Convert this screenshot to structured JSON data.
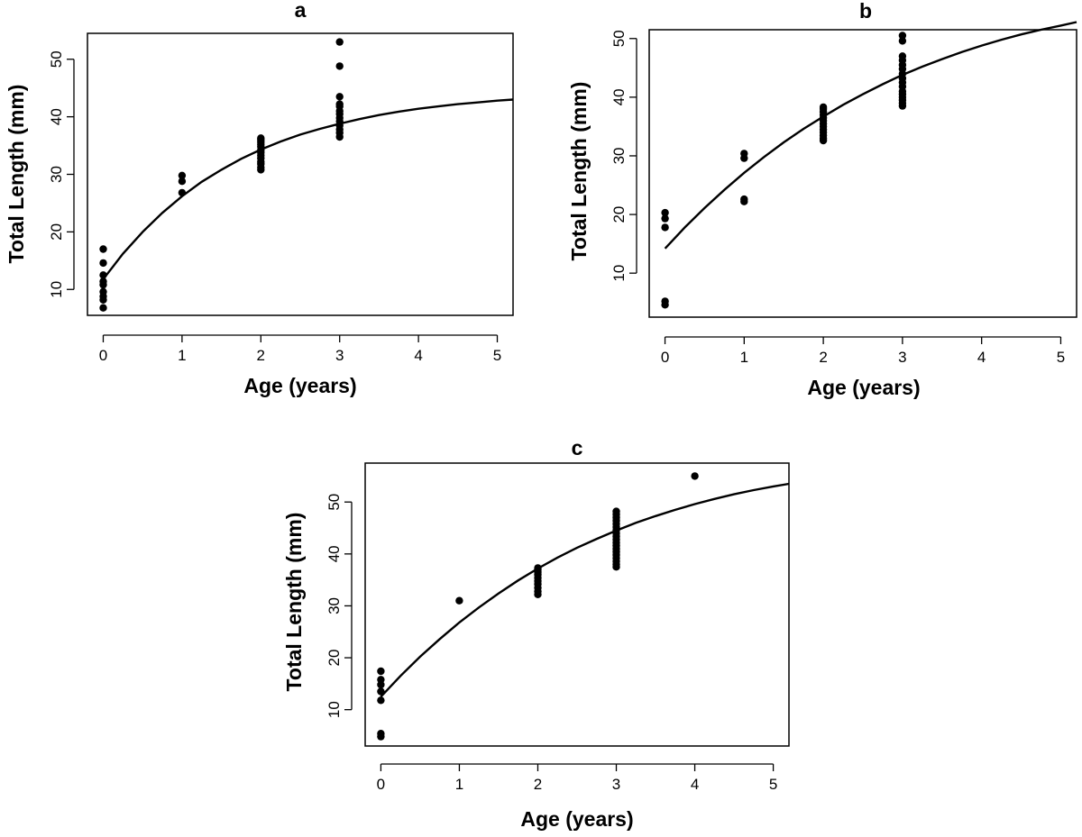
{
  "chart_data": [
    {
      "type": "scatter",
      "title": "a",
      "xlabel": "Age (years)",
      "ylabel": "Total Length (mm)",
      "xlim": [
        -0.2,
        5.2
      ],
      "ylim": [
        5.5,
        54.5
      ],
      "xticks": [
        0,
        1,
        2,
        3,
        4,
        5
      ],
      "yticks": [
        10,
        20,
        30,
        40,
        50
      ],
      "grid": false,
      "points": {
        "x": [
          0,
          0,
          0,
          0,
          0,
          0,
          0,
          0,
          0,
          1,
          1,
          1,
          2,
          2,
          2,
          2,
          2,
          2,
          2,
          2,
          2,
          2,
          2,
          2,
          2,
          3,
          3,
          3,
          3,
          3,
          3,
          3,
          3,
          3,
          3,
          3,
          3,
          3
        ],
        "y": [
          6.8,
          8.2,
          8.8,
          9.6,
          10.8,
          11.4,
          12.5,
          14.6,
          17.0,
          26.8,
          28.8,
          29.8,
          30.8,
          31.2,
          31.8,
          32.2,
          32.8,
          33.3,
          33.8,
          34.2,
          34.8,
          35.2,
          35.6,
          36.0,
          36.3,
          36.5,
          37.2,
          37.8,
          38.5,
          39.2,
          39.8,
          40.5,
          41.0,
          41.8,
          42.2,
          43.5,
          48.8,
          53.0
        ]
      },
      "fit": {
        "x": [
          0,
          0.25,
          0.5,
          0.75,
          1,
          1.25,
          1.5,
          1.75,
          2,
          2.25,
          2.5,
          2.75,
          3,
          3.25,
          3.5,
          3.75,
          4,
          4.25,
          4.5,
          4.75,
          5,
          5.2
        ],
        "y": [
          11.8,
          16.2,
          20.0,
          23.3,
          26.2,
          28.7,
          30.8,
          32.7,
          34.3,
          35.7,
          36.9,
          37.9,
          38.8,
          39.6,
          40.3,
          40.9,
          41.4,
          41.8,
          42.2,
          42.5,
          42.8,
          43.0
        ]
      }
    },
    {
      "type": "scatter",
      "title": "b",
      "xlabel": "Age (years)",
      "ylabel": "Total Length (mm)",
      "xlim": [
        -0.2,
        5.2
      ],
      "ylim": [
        2.5,
        51.5
      ],
      "xticks": [
        0,
        1,
        2,
        3,
        4,
        5
      ],
      "yticks": [
        10,
        20,
        30,
        40,
        50
      ],
      "grid": false,
      "points": {
        "x": [
          0,
          0,
          0,
          0,
          0,
          1,
          1,
          1,
          1,
          2,
          2,
          2,
          2,
          2,
          2,
          2,
          2,
          2,
          2,
          2,
          2,
          2,
          3,
          3,
          3,
          3,
          3,
          3,
          3,
          3,
          3,
          3,
          3,
          3,
          3,
          3,
          3,
          3
        ],
        "y": [
          4.6,
          5.2,
          17.8,
          19.3,
          20.3,
          22.2,
          22.6,
          29.6,
          30.4,
          32.6,
          33.0,
          33.5,
          34.0,
          34.5,
          35.0,
          35.5,
          36.0,
          36.5,
          37.0,
          37.5,
          38.0,
          38.3,
          38.5,
          39.0,
          39.5,
          40.0,
          40.5,
          41.0,
          41.8,
          42.5,
          43.2,
          44.0,
          44.8,
          45.5,
          46.3,
          47.0,
          49.6,
          50.5
        ]
      },
      "fit": {
        "x": [
          0,
          0.25,
          0.5,
          0.75,
          1,
          1.25,
          1.5,
          1.75,
          2,
          2.25,
          2.5,
          2.75,
          3,
          3.25,
          3.5,
          3.75,
          4,
          4.25,
          4.5,
          4.75,
          5,
          5.2
        ],
        "y": [
          14.2,
          17.8,
          21.1,
          24.2,
          27.1,
          29.8,
          32.3,
          34.6,
          36.7,
          38.7,
          40.5,
          42.2,
          43.8,
          45.2,
          46.5,
          47.7,
          48.8,
          49.8,
          50.7,
          51.5,
          52.2,
          52.8
        ]
      }
    },
    {
      "type": "scatter",
      "title": "c",
      "xlabel": "Age (years)",
      "ylabel": "Total Length (mm)",
      "xlim": [
        -0.2,
        5.2
      ],
      "ylim": [
        3.0,
        57.5
      ],
      "xticks": [
        0,
        1,
        2,
        3,
        4,
        5
      ],
      "yticks": [
        10,
        20,
        30,
        40,
        50
      ],
      "grid": false,
      "points": {
        "x": [
          0,
          0,
          0,
          0,
          0,
          0,
          0,
          1,
          2,
          2,
          2,
          2,
          2,
          2,
          2,
          2,
          2,
          2,
          3,
          3,
          3,
          3,
          3,
          3,
          3,
          3,
          3,
          3,
          3,
          3,
          3,
          3,
          3,
          3,
          3,
          3,
          3,
          4
        ],
        "y": [
          4.8,
          5.4,
          11.8,
          13.5,
          14.8,
          15.8,
          17.4,
          31.0,
          32.2,
          32.8,
          33.5,
          34.2,
          34.8,
          35.4,
          36.0,
          36.5,
          37.0,
          37.3,
          37.5,
          38.0,
          38.6,
          39.2,
          39.8,
          40.4,
          41.0,
          41.6,
          42.2,
          42.8,
          43.4,
          44.0,
          44.6,
          45.2,
          45.8,
          46.4,
          47.0,
          47.6,
          48.2,
          55.0
        ]
      },
      "fit": {
        "x": [
          0,
          0.25,
          0.5,
          0.75,
          1,
          1.25,
          1.5,
          1.75,
          2,
          2.25,
          2.5,
          2.75,
          3,
          3.25,
          3.5,
          3.75,
          4,
          4.25,
          4.5,
          4.75,
          5,
          5.2
        ],
        "y": [
          12.5,
          16.5,
          20.2,
          23.6,
          26.8,
          29.7,
          32.4,
          34.9,
          37.2,
          39.3,
          41.2,
          42.9,
          44.5,
          46.0,
          47.3,
          48.5,
          49.6,
          50.6,
          51.5,
          52.3,
          53.0,
          53.5
        ]
      }
    }
  ]
}
